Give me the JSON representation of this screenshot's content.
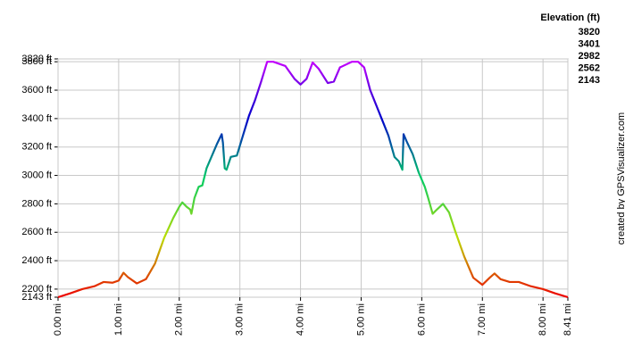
{
  "chart_data": {
    "type": "line",
    "credit": "created by GPSVisualizer.com",
    "legend_title": "Elevation (ft)",
    "color_scale": [
      {
        "value": 3820,
        "color": "#cc00ff"
      },
      {
        "value": 3401,
        "color": "#0000cc"
      },
      {
        "value": 2982,
        "color": "#00cc66"
      },
      {
        "value": 2562,
        "color": "#bbdd00"
      },
      {
        "value": 2143,
        "color": "#ee0000"
      }
    ],
    "grid": true,
    "xlim": [
      0,
      8.41
    ],
    "ylim": [
      2143,
      3820
    ],
    "xticks": [
      {
        "value": 0,
        "label": "0.00 mi"
      },
      {
        "value": 1,
        "label": "1.00 mi"
      },
      {
        "value": 2,
        "label": "2.00 mi"
      },
      {
        "value": 3,
        "label": "3.00 mi"
      },
      {
        "value": 4,
        "label": "4.00 mi"
      },
      {
        "value": 5,
        "label": "5.00 mi"
      },
      {
        "value": 6,
        "label": "6.00 mi"
      },
      {
        "value": 7,
        "label": "7.00 mi"
      },
      {
        "value": 8,
        "label": "8.00 mi"
      },
      {
        "value": 8.41,
        "label": "8.41 mi"
      }
    ],
    "yticks": [
      {
        "value": 2143,
        "label": "2143 ft"
      },
      {
        "value": 2200,
        "label": "2200 ft"
      },
      {
        "value": 2400,
        "label": "2400 ft"
      },
      {
        "value": 2600,
        "label": "2600 ft"
      },
      {
        "value": 2800,
        "label": "2800 ft"
      },
      {
        "value": 3000,
        "label": "3000 ft"
      },
      {
        "value": 3200,
        "label": "3200 ft"
      },
      {
        "value": 3400,
        "label": "3400 ft"
      },
      {
        "value": 3600,
        "label": "3600 ft"
      },
      {
        "value": 3800,
        "label": "3800 ft"
      },
      {
        "value": 3820,
        "label": "3820 ft"
      }
    ],
    "x": [
      0,
      0.2,
      0.4,
      0.6,
      0.75,
      0.9,
      1.0,
      1.08,
      1.15,
      1.3,
      1.45,
      1.6,
      1.75,
      1.9,
      2.0,
      2.05,
      2.12,
      2.18,
      2.2,
      2.25,
      2.32,
      2.38,
      2.45,
      2.55,
      2.62,
      2.7,
      2.72,
      2.75,
      2.78,
      2.85,
      2.95,
      3.05,
      3.15,
      3.25,
      3.35,
      3.45,
      3.55,
      3.75,
      3.9,
      4.0,
      4.1,
      4.2,
      4.3,
      4.45,
      4.55,
      4.65,
      4.85,
      4.95,
      5.05,
      5.15,
      5.3,
      5.45,
      5.55,
      5.62,
      5.68,
      5.7,
      5.75,
      5.85,
      5.95,
      6.05,
      6.1,
      6.18,
      6.25,
      6.35,
      6.45,
      6.55,
      6.7,
      6.85,
      7.0,
      7.12,
      7.2,
      7.3,
      7.45,
      7.6,
      7.8,
      8.0,
      8.2,
      8.41
    ],
    "values": [
      2143,
      2170,
      2200,
      2220,
      2250,
      2245,
      2260,
      2315,
      2285,
      2240,
      2270,
      2380,
      2560,
      2700,
      2780,
      2810,
      2780,
      2760,
      2730,
      2840,
      2920,
      2930,
      3050,
      3150,
      3220,
      3290,
      3230,
      3050,
      3040,
      3130,
      3140,
      3280,
      3420,
      3530,
      3660,
      3800,
      3800,
      3770,
      3680,
      3640,
      3680,
      3795,
      3750,
      3650,
      3660,
      3760,
      3800,
      3800,
      3760,
      3600,
      3440,
      3280,
      3130,
      3100,
      3040,
      3290,
      3240,
      3150,
      3020,
      2920,
      2850,
      2730,
      2760,
      2800,
      2740,
      2610,
      2430,
      2280,
      2230,
      2280,
      2310,
      2270,
      2250,
      2250,
      2220,
      2200,
      2170,
      2143
    ]
  }
}
